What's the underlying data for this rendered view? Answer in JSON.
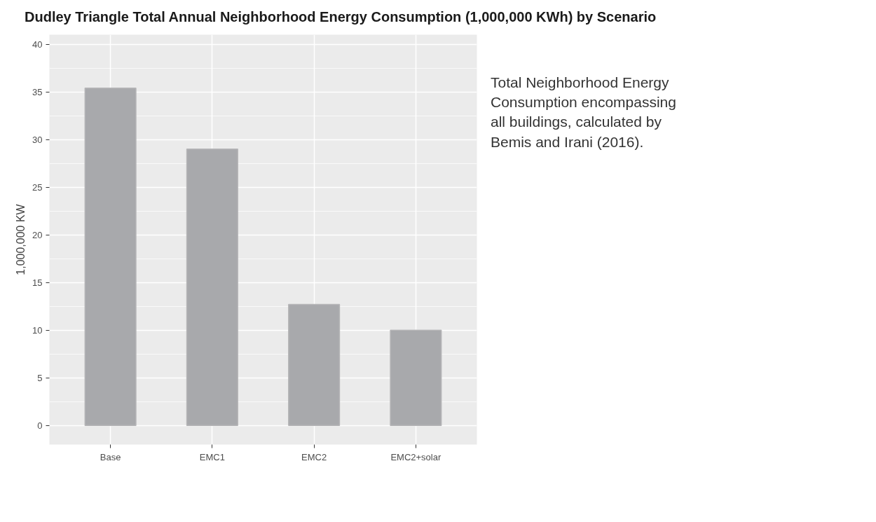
{
  "chart_data": {
    "type": "bar",
    "title": "Dudley Triangle Total Annual Neighborhood Energy Consumption (1,000,000 KWh) by Scenario",
    "ylabel": "1,000,000 KW",
    "categories": [
      "Base",
      "EMC1",
      "EMC2",
      "EMC2+solar"
    ],
    "values": [
      35.4,
      29.0,
      12.7,
      10.0
    ],
    "color": "#a8a9ac",
    "ylim": [
      -2,
      41
    ],
    "yticks": [
      0,
      5,
      10,
      15,
      20,
      25,
      30,
      35,
      40
    ],
    "grid": true,
    "annotations": [
      "Total Neighborhood Energy Consumption encompassing all buildings, calculated by Bemis and Irani (2016)."
    ]
  }
}
